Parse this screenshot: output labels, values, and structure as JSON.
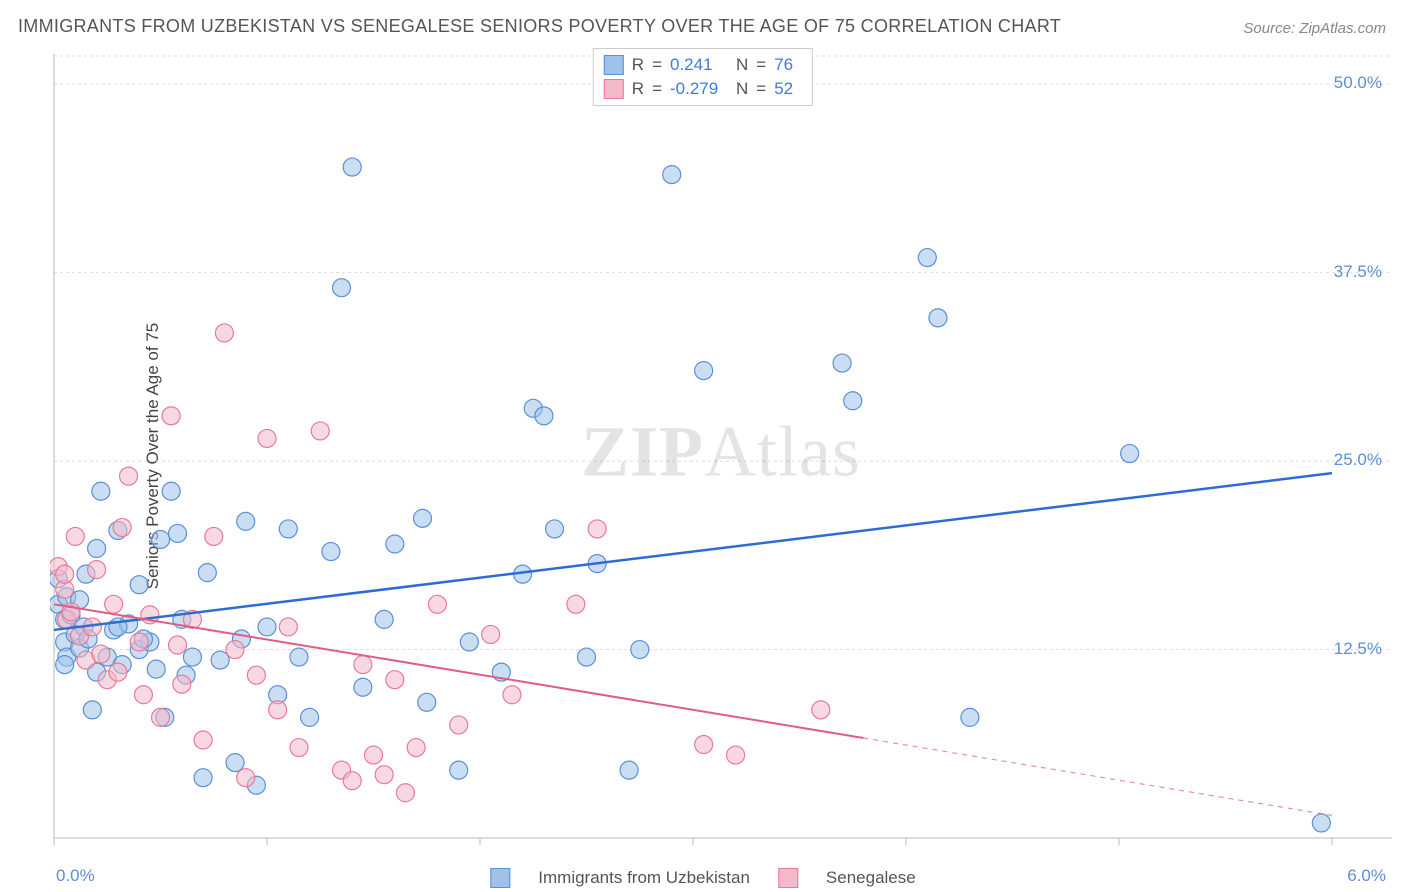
{
  "title": "IMMIGRANTS FROM UZBEKISTAN VS SENEGALESE SENIORS POVERTY OVER THE AGE OF 75 CORRELATION CHART",
  "source_label": "Source: ",
  "source_name": "ZipAtlas.com",
  "watermark_prefix": "ZIP",
  "watermark_suffix": "Atlas",
  "chart": {
    "type": "scatter",
    "background_color": "#ffffff",
    "grid_color": "#dddddd",
    "axis_color": "#bbbbbb",
    "y_axis_title": "Seniors Poverty Over the Age of 75",
    "x_axis_title": "",
    "xlim": [
      0.0,
      6.0
    ],
    "ylim": [
      0.0,
      52.0
    ],
    "x_ticks": [
      0.0,
      1.0,
      2.0,
      3.0,
      4.0,
      5.0,
      6.0
    ],
    "x_tick_labels_shown": {
      "0": "0.0%",
      "6": "6.0%"
    },
    "y_ticks": [
      12.5,
      25.0,
      37.5,
      50.0
    ],
    "y_tick_labels": [
      "12.5%",
      "25.0%",
      "37.5%",
      "50.0%"
    ],
    "marker_radius": 9,
    "marker_opacity": 0.55,
    "series": [
      {
        "id": "uzbekistan",
        "name": "Immigrants from Uzbekistan",
        "fill": "#9fc2ea",
        "stroke": "#5b8fd6",
        "R": 0.241,
        "N": 76,
        "regression": {
          "x0": 0.0,
          "y0": 13.8,
          "x1": 6.0,
          "y1": 24.2,
          "color": "#2d6cd2",
          "width": 2.5,
          "solid_until_x": 6.0
        },
        "points": [
          [
            0.02,
            15.5
          ],
          [
            0.02,
            17.2
          ],
          [
            0.05,
            13.0
          ],
          [
            0.05,
            14.5
          ],
          [
            0.06,
            12.0
          ],
          [
            0.06,
            16.0
          ],
          [
            0.08,
            14.8
          ],
          [
            0.1,
            13.5
          ],
          [
            0.12,
            12.6
          ],
          [
            0.12,
            15.8
          ],
          [
            0.14,
            14.0
          ],
          [
            0.15,
            17.5
          ],
          [
            0.16,
            13.2
          ],
          [
            0.18,
            8.5
          ],
          [
            0.2,
            11.0
          ],
          [
            0.2,
            19.2
          ],
          [
            0.22,
            23.0
          ],
          [
            0.25,
            12.0
          ],
          [
            0.28,
            13.8
          ],
          [
            0.3,
            20.4
          ],
          [
            0.32,
            11.5
          ],
          [
            0.35,
            14.2
          ],
          [
            0.4,
            12.5
          ],
          [
            0.4,
            16.8
          ],
          [
            0.45,
            13.0
          ],
          [
            0.48,
            11.2
          ],
          [
            0.5,
            19.8
          ],
          [
            0.52,
            8.0
          ],
          [
            0.55,
            23.0
          ],
          [
            0.58,
            20.2
          ],
          [
            0.6,
            14.5
          ],
          [
            0.62,
            10.8
          ],
          [
            0.65,
            12.0
          ],
          [
            0.7,
            4.0
          ],
          [
            0.72,
            17.6
          ],
          [
            0.78,
            11.8
          ],
          [
            0.85,
            5.0
          ],
          [
            0.88,
            13.2
          ],
          [
            0.9,
            21.0
          ],
          [
            0.95,
            3.5
          ],
          [
            1.0,
            14.0
          ],
          [
            1.05,
            9.5
          ],
          [
            1.1,
            20.5
          ],
          [
            1.15,
            12.0
          ],
          [
            1.2,
            8.0
          ],
          [
            1.3,
            19.0
          ],
          [
            1.35,
            36.5
          ],
          [
            1.4,
            44.5
          ],
          [
            1.45,
            10.0
          ],
          [
            1.55,
            14.5
          ],
          [
            1.6,
            19.5
          ],
          [
            1.73,
            21.2
          ],
          [
            1.75,
            9.0
          ],
          [
            1.9,
            4.5
          ],
          [
            1.95,
            13.0
          ],
          [
            2.1,
            11.0
          ],
          [
            2.2,
            17.5
          ],
          [
            2.25,
            28.5
          ],
          [
            2.3,
            28.0
          ],
          [
            2.35,
            20.5
          ],
          [
            2.5,
            12.0
          ],
          [
            2.55,
            18.2
          ],
          [
            2.7,
            4.5
          ],
          [
            2.75,
            12.5
          ],
          [
            2.9,
            44.0
          ],
          [
            3.05,
            31.0
          ],
          [
            3.7,
            31.5
          ],
          [
            3.75,
            29.0
          ],
          [
            4.1,
            38.5
          ],
          [
            4.15,
            34.5
          ],
          [
            4.3,
            8.0
          ],
          [
            5.05,
            25.5
          ],
          [
            5.95,
            1.0
          ],
          [
            0.3,
            14.0
          ],
          [
            0.05,
            11.5
          ],
          [
            0.42,
            13.2
          ]
        ]
      },
      {
        "id": "senegalese",
        "name": "Senegalese",
        "fill": "#f4b9c8",
        "stroke": "#e77a9a",
        "R": -0.279,
        "N": 52,
        "regression": {
          "x0": 0.0,
          "y0": 15.5,
          "x1": 6.0,
          "y1": 1.5,
          "color": "#e05c84",
          "width": 2.0,
          "solid_until_x": 3.8
        },
        "points": [
          [
            0.02,
            18.0
          ],
          [
            0.05,
            16.5
          ],
          [
            0.06,
            14.5
          ],
          [
            0.08,
            15.0
          ],
          [
            0.1,
            20.0
          ],
          [
            0.12,
            13.4
          ],
          [
            0.15,
            11.8
          ],
          [
            0.18,
            14.0
          ],
          [
            0.2,
            17.8
          ],
          [
            0.22,
            12.2
          ],
          [
            0.25,
            10.5
          ],
          [
            0.28,
            15.5
          ],
          [
            0.3,
            11.0
          ],
          [
            0.32,
            20.6
          ],
          [
            0.35,
            24.0
          ],
          [
            0.4,
            13.0
          ],
          [
            0.42,
            9.5
          ],
          [
            0.45,
            14.8
          ],
          [
            0.5,
            8.0
          ],
          [
            0.55,
            28.0
          ],
          [
            0.58,
            12.8
          ],
          [
            0.6,
            10.2
          ],
          [
            0.65,
            14.5
          ],
          [
            0.7,
            6.5
          ],
          [
            0.75,
            20.0
          ],
          [
            0.8,
            33.5
          ],
          [
            0.85,
            12.5
          ],
          [
            0.9,
            4.0
          ],
          [
            0.95,
            10.8
          ],
          [
            1.0,
            26.5
          ],
          [
            1.05,
            8.5
          ],
          [
            1.1,
            14.0
          ],
          [
            1.15,
            6.0
          ],
          [
            1.25,
            27.0
          ],
          [
            1.35,
            4.5
          ],
          [
            1.4,
            3.8
          ],
          [
            1.45,
            11.5
          ],
          [
            1.5,
            5.5
          ],
          [
            1.55,
            4.2
          ],
          [
            1.6,
            10.5
          ],
          [
            1.65,
            3.0
          ],
          [
            1.7,
            6.0
          ],
          [
            1.8,
            15.5
          ],
          [
            1.9,
            7.5
          ],
          [
            2.05,
            13.5
          ],
          [
            2.15,
            9.5
          ],
          [
            2.45,
            15.5
          ],
          [
            2.55,
            20.5
          ],
          [
            3.05,
            6.2
          ],
          [
            3.2,
            5.5
          ],
          [
            3.6,
            8.5
          ],
          [
            0.05,
            17.5
          ]
        ]
      }
    ]
  },
  "legend_labels": {
    "R_prefix": "R",
    "N_prefix": "N",
    "equals": "="
  },
  "x_left_label": "0.0%",
  "x_right_label": "6.0%"
}
